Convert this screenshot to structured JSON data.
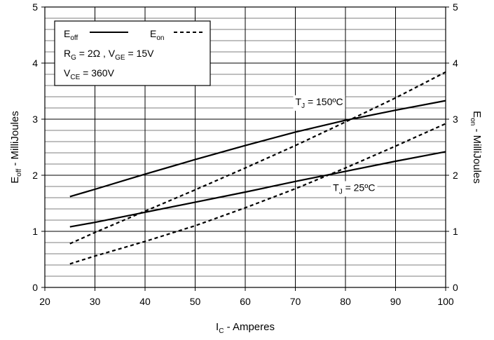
{
  "chart_data": {
    "type": "line",
    "x_label": {
      "main": "I",
      "sub": "C",
      "rest": " - Amperes"
    },
    "y_left_label": {
      "main": "E",
      "sub": "off",
      "rest": " - MilliJoules"
    },
    "y_right_label": {
      "main": "E",
      "sub": "on",
      "rest": " - MilliJoules"
    },
    "xlim": [
      20,
      100
    ],
    "ylim": [
      0,
      5
    ],
    "x_ticks": [
      "20",
      "30",
      "40",
      "50",
      "60",
      "70",
      "80",
      "90",
      "100"
    ],
    "y_ticks": [
      "0",
      "1",
      "2",
      "3",
      "4",
      "5"
    ],
    "grid": {
      "major": true,
      "minor": true,
      "minor_y_step": 0.2
    },
    "legend": {
      "placement": "top-left",
      "items": [
        {
          "main": "E",
          "sub": "off",
          "style": "solid"
        },
        {
          "main": "E",
          "sub": "on",
          "style": "dashed"
        }
      ],
      "conditions": [
        [
          {
            "main": "R",
            "sub": "G",
            "rest": " = 2Ω ,  "
          },
          {
            "main": "V",
            "sub": "GE",
            "rest": " = 15V"
          }
        ],
        [
          {
            "main": "V",
            "sub": "CE",
            "rest": " = 360V"
          }
        ]
      ]
    },
    "annotations": [
      {
        "main": "T",
        "sub": "J",
        "rest": " = 150ºC",
        "x": 70,
        "y": 3.25
      },
      {
        "main": "T",
        "sub": "J",
        "rest": " = 25ºC",
        "x": 77.5,
        "y": 1.72
      }
    ],
    "series": [
      {
        "group": "150C",
        "kind": "Eoff",
        "style": "solid",
        "x": [
          25,
          30,
          40,
          50,
          60,
          70,
          80,
          90,
          100
        ],
        "y": [
          1.62,
          1.75,
          2.02,
          2.28,
          2.53,
          2.77,
          2.98,
          3.16,
          3.33
        ]
      },
      {
        "group": "25C",
        "kind": "Eoff",
        "style": "solid",
        "x": [
          25,
          30,
          40,
          50,
          60,
          70,
          80,
          90,
          100
        ],
        "y": [
          1.08,
          1.16,
          1.34,
          1.52,
          1.7,
          1.89,
          2.07,
          2.25,
          2.42
        ]
      },
      {
        "group": "150C",
        "kind": "Eon",
        "style": "dashed",
        "x": [
          25,
          30,
          40,
          50,
          60,
          70,
          80,
          90,
          100
        ],
        "y": [
          0.78,
          0.98,
          1.36,
          1.74,
          2.13,
          2.53,
          2.95,
          3.38,
          3.84
        ]
      },
      {
        "group": "25C",
        "kind": "Eon",
        "style": "dashed",
        "x": [
          25,
          30,
          40,
          50,
          60,
          70,
          80,
          90,
          100
        ],
        "y": [
          0.42,
          0.56,
          0.82,
          1.1,
          1.42,
          1.76,
          2.13,
          2.52,
          2.92
        ]
      }
    ]
  }
}
